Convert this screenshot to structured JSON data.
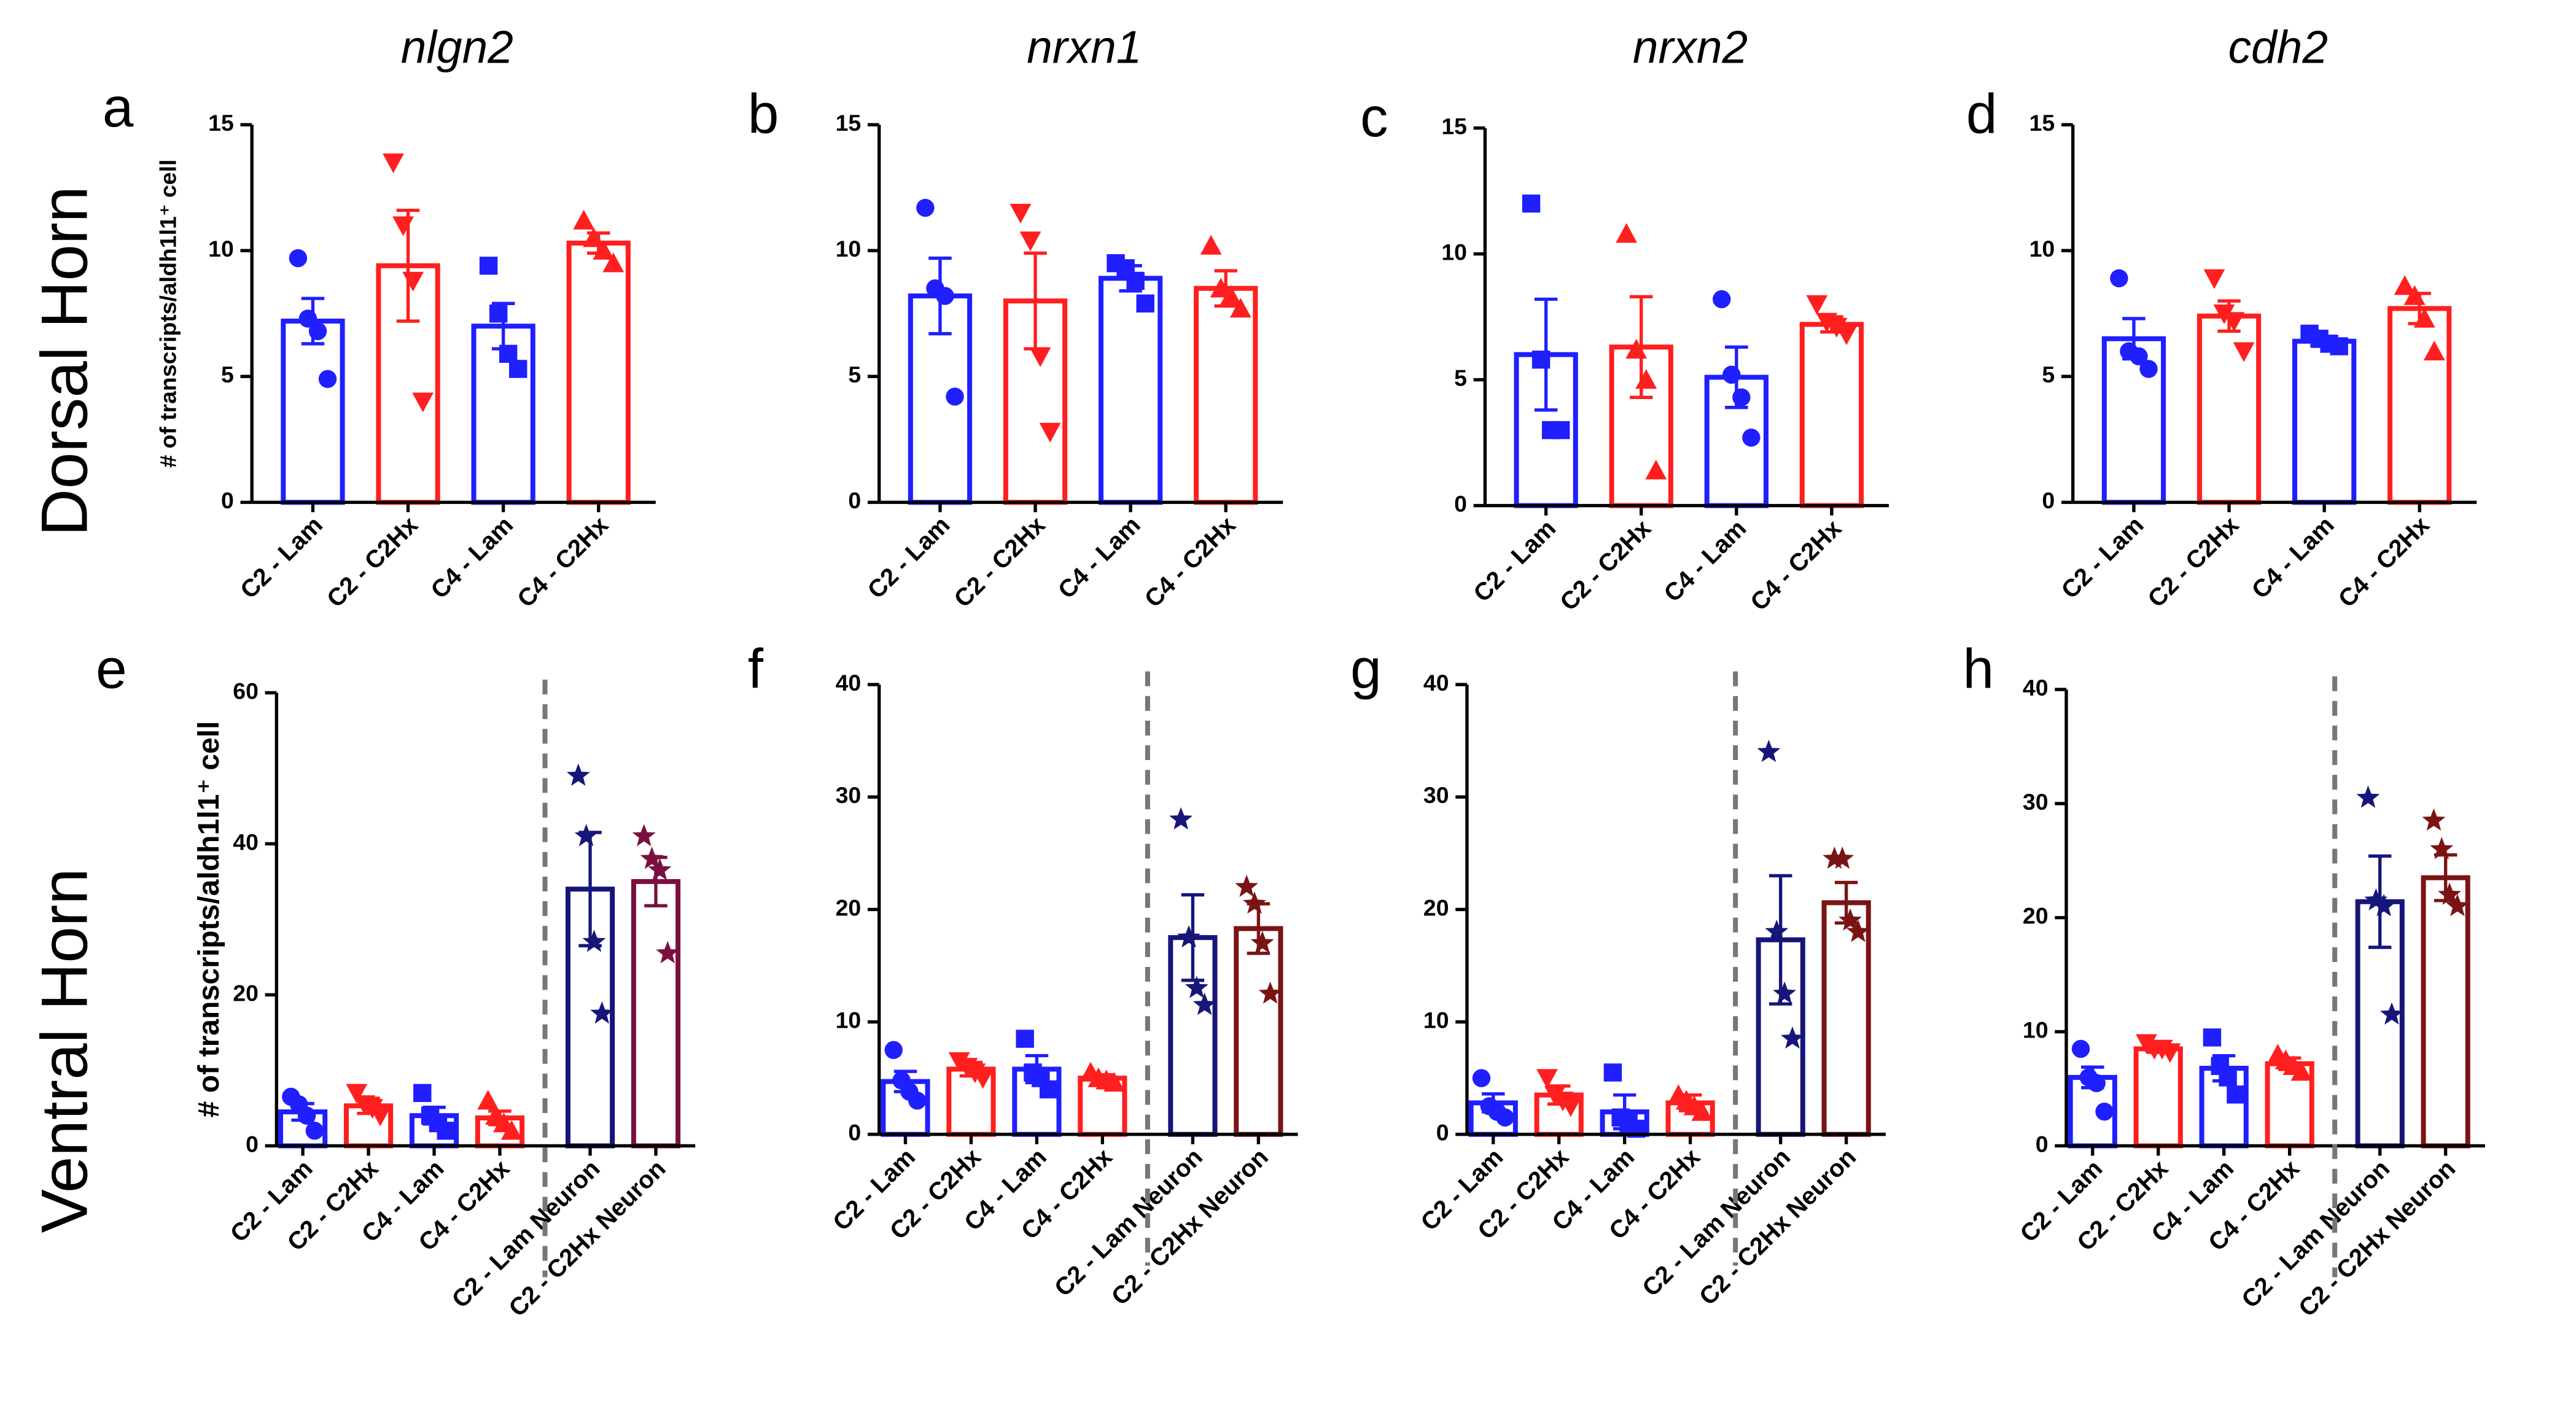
{
  "row_labels": [
    "Dorsal Horn",
    "Ventral Horn"
  ],
  "chart_data": [
    {
      "type": "bar",
      "label": "a",
      "title": "nlgn2",
      "y_label": "# of transcripts/aldh1l1⁺ cell",
      "categories": [
        "C2 - Lam",
        "C2 - C2Hx",
        "C4 - Lam",
        "C4 - C2Hx"
      ],
      "values": [
        7.2,
        9.4,
        7.0,
        10.3
      ],
      "errors": [
        0.9,
        2.2,
        0.9,
        0.4
      ],
      "points": [
        [
          9.7,
          7.3,
          6.8,
          4.9
        ],
        [
          13.5,
          11.0,
          8.8,
          4.0
        ],
        [
          9.4,
          7.5,
          5.9,
          5.3
        ],
        [
          11.2,
          10.5,
          10.0,
          9.5
        ]
      ],
      "colors": [
        "#1f1fff",
        "#ff1f1f",
        "#1f1fff",
        "#ff1f1f"
      ],
      "markers": [
        "circle",
        "triangle-down",
        "square",
        "triangle-up"
      ],
      "ylim": [
        0,
        15
      ],
      "yticks": [
        0,
        5,
        10,
        15
      ]
    },
    {
      "type": "bar",
      "label": "b",
      "title": "nrxn1",
      "categories": [
        "C2 - Lam",
        "C2 - C2Hx",
        "C4 - Lam",
        "C4 - C2Hx"
      ],
      "values": [
        8.2,
        8.0,
        8.9,
        8.5
      ],
      "errors": [
        1.5,
        1.9,
        0.5,
        0.7
      ],
      "points": [
        [
          11.7,
          8.5,
          8.2,
          4.2
        ],
        [
          11.5,
          10.4,
          5.8,
          2.8
        ],
        [
          9.5,
          9.3,
          8.8,
          7.9
        ],
        [
          10.2,
          8.5,
          8.2,
          7.7
        ]
      ],
      "colors": [
        "#1f1fff",
        "#ff1f1f",
        "#1f1fff",
        "#ff1f1f"
      ],
      "markers": [
        "circle",
        "triangle-down",
        "square",
        "triangle-up"
      ],
      "ylim": [
        0,
        15
      ],
      "yticks": [
        0,
        5,
        10,
        15
      ]
    },
    {
      "type": "bar",
      "label": "c",
      "title": "nrxn2",
      "categories": [
        "C2 - Lam",
        "C2 - C2Hx",
        "C4 - Lam",
        "C4 - C2Hx"
      ],
      "values": [
        6.0,
        6.3,
        5.1,
        7.2
      ],
      "errors": [
        2.2,
        2.0,
        1.2,
        0.3
      ],
      "points": [
        [
          12.0,
          5.8,
          3.0,
          3.0
        ],
        [
          10.8,
          6.2,
          5.0,
          1.4
        ],
        [
          8.2,
          5.2,
          4.3,
          2.7
        ],
        [
          8.0,
          7.3,
          7.1,
          6.8
        ]
      ],
      "colors": [
        "#1f1fff",
        "#ff1f1f",
        "#1f1fff",
        "#ff1f1f"
      ],
      "markers": [
        "square",
        "triangle-up",
        "circle",
        "triangle-down"
      ],
      "ylim": [
        0,
        15
      ],
      "yticks": [
        0,
        5,
        10,
        15
      ]
    },
    {
      "type": "bar",
      "label": "d",
      "title": "cdh2",
      "categories": [
        "C2 - Lam",
        "C2 - C2Hx",
        "C4 - Lam",
        "C4 - C2Hx"
      ],
      "values": [
        6.5,
        7.4,
        6.4,
        7.7
      ],
      "errors": [
        0.8,
        0.6,
        0.2,
        0.6
      ],
      "points": [
        [
          8.9,
          6.0,
          5.8,
          5.3
        ],
        [
          8.9,
          7.5,
          7.2,
          6.0
        ],
        [
          6.7,
          6.5,
          6.3,
          6.2
        ],
        [
          8.6,
          8.2,
          7.3,
          6.0
        ]
      ],
      "colors": [
        "#1f1fff",
        "#ff1f1f",
        "#1f1fff",
        "#ff1f1f"
      ],
      "markers": [
        "circle",
        "triangle-down",
        "square",
        "triangle-up"
      ],
      "ylim": [
        0,
        15
      ],
      "yticks": [
        0,
        5,
        10,
        15
      ]
    },
    {
      "type": "bar",
      "label": "e",
      "y_label": "# of transcripts/aldh1l1⁺ cell",
      "divider": true,
      "categories": [
        "C2 - Lam",
        "C2 - C2Hx",
        "C4 - Lam",
        "C4 - C2Hx",
        "C2 - Lam Neuron",
        "C2 - C2Hx Neuron"
      ],
      "values": [
        4.5,
        5.3,
        4.0,
        3.7,
        34.0,
        35.0
      ],
      "errors": [
        1.1,
        1.0,
        1.1,
        0.9,
        7.5,
        3.2
      ],
      "points": [
        [
          6.5,
          5.5,
          4.0,
          2.0
        ],
        [
          7.0,
          5.5,
          5.0,
          4.0
        ],
        [
          7.0,
          4.0,
          3.0,
          2.0
        ],
        [
          6.0,
          4.0,
          3.0,
          2.0
        ],
        [
          49,
          41,
          27,
          17.5
        ],
        [
          41,
          38,
          36.5,
          25.5
        ]
      ],
      "colors": [
        "#1f1fff",
        "#ff1f1f",
        "#1f1fff",
        "#ff1f1f",
        "#16167a",
        "#7a1040"
      ],
      "markers": [
        "circle",
        "triangle-down",
        "square",
        "triangle-up",
        "star",
        "star"
      ],
      "ylim": [
        0,
        60
      ],
      "yticks": [
        0,
        20,
        40,
        60
      ]
    },
    {
      "type": "bar",
      "label": "f",
      "divider": true,
      "categories": [
        "C2 - Lam",
        "C2 - C2Hx",
        "C4 - Lam",
        "C4 - C2Hx",
        "C2 - Lam Neuron",
        "C2 - C2Hx Neuron"
      ],
      "values": [
        4.7,
        5.8,
        5.8,
        5.0,
        17.5,
        18.3
      ],
      "errors": [
        0.9,
        0.6,
        1.2,
        0.3,
        3.8,
        2.2
      ],
      "points": [
        [
          7.5,
          4.8,
          3.8,
          3.0
        ],
        [
          6.5,
          6.0,
          5.5,
          5.0
        ],
        [
          8.5,
          5.5,
          5.0,
          4.0
        ],
        [
          5.5,
          5.0,
          4.8,
          4.6
        ],
        [
          28,
          17.5,
          13,
          11.5
        ],
        [
          22,
          20.5,
          17,
          12.5
        ]
      ],
      "colors": [
        "#1f1fff",
        "#ff1f1f",
        "#1f1fff",
        "#ff1f1f",
        "#16167a",
        "#7a1414"
      ],
      "markers": [
        "circle",
        "triangle-down",
        "square",
        "triangle-up",
        "star",
        "star"
      ],
      "ylim": [
        0,
        40
      ],
      "yticks": [
        0,
        10,
        20,
        30,
        40
      ]
    },
    {
      "type": "bar",
      "label": "g",
      "divider": true,
      "categories": [
        "C2 - Lam",
        "C2 - C2Hx",
        "C4 - Lam",
        "C4 - C2Hx",
        "C2 - Lam Neuron",
        "C2 - C2Hx Neuron"
      ],
      "values": [
        2.8,
        3.5,
        2.0,
        2.8,
        17.3,
        20.6
      ],
      "errors": [
        0.8,
        0.8,
        1.5,
        0.7,
        5.7,
        1.8
      ],
      "points": [
        [
          5,
          2.5,
          2,
          1.5
        ],
        [
          5,
          3.5,
          3,
          2.5
        ],
        [
          5.5,
          1.5,
          1,
          0.5
        ],
        [
          3.5,
          3,
          2.5,
          2
        ],
        [
          34,
          18,
          12.5,
          8.5
        ],
        [
          24.5,
          24.5,
          19,
          18
        ]
      ],
      "colors": [
        "#1f1fff",
        "#ff1f1f",
        "#1f1fff",
        "#ff1f1f",
        "#16167a",
        "#7a1414"
      ],
      "markers": [
        "circle",
        "triangle-down",
        "square",
        "triangle-up",
        "star",
        "star"
      ],
      "ylim": [
        0,
        40
      ],
      "yticks": [
        0,
        10,
        20,
        30,
        40
      ]
    },
    {
      "type": "bar",
      "label": "h",
      "divider": true,
      "categories": [
        "C2 - Lam",
        "C2 - C2Hx",
        "C4 - Lam",
        "C4 - C2Hx",
        "C2 - Lam Neuron",
        "C2 - C2Hx Neuron"
      ],
      "values": [
        6.0,
        8.5,
        6.8,
        7.2,
        21.4,
        23.5
      ],
      "errors": [
        0.9,
        0.3,
        1.1,
        0.5,
        4.0,
        2.0
      ],
      "points": [
        [
          8.5,
          6.0,
          5.5,
          3.0
        ],
        [
          9,
          8.5,
          8.5,
          8.2
        ],
        [
          9.5,
          7,
          6,
          4.5
        ],
        [
          8,
          7.5,
          7,
          6.5
        ],
        [
          30.5,
          21.5,
          21,
          11.5
        ],
        [
          28.5,
          26,
          22,
          21
        ]
      ],
      "colors": [
        "#1f1fff",
        "#ff1f1f",
        "#1f1fff",
        "#ff1f1f",
        "#16167a",
        "#7a1414"
      ],
      "markers": [
        "circle",
        "triangle-down",
        "square",
        "triangle-up",
        "star",
        "star"
      ],
      "ylim": [
        0,
        40
      ],
      "yticks": [
        0,
        10,
        20,
        30,
        40
      ]
    }
  ]
}
